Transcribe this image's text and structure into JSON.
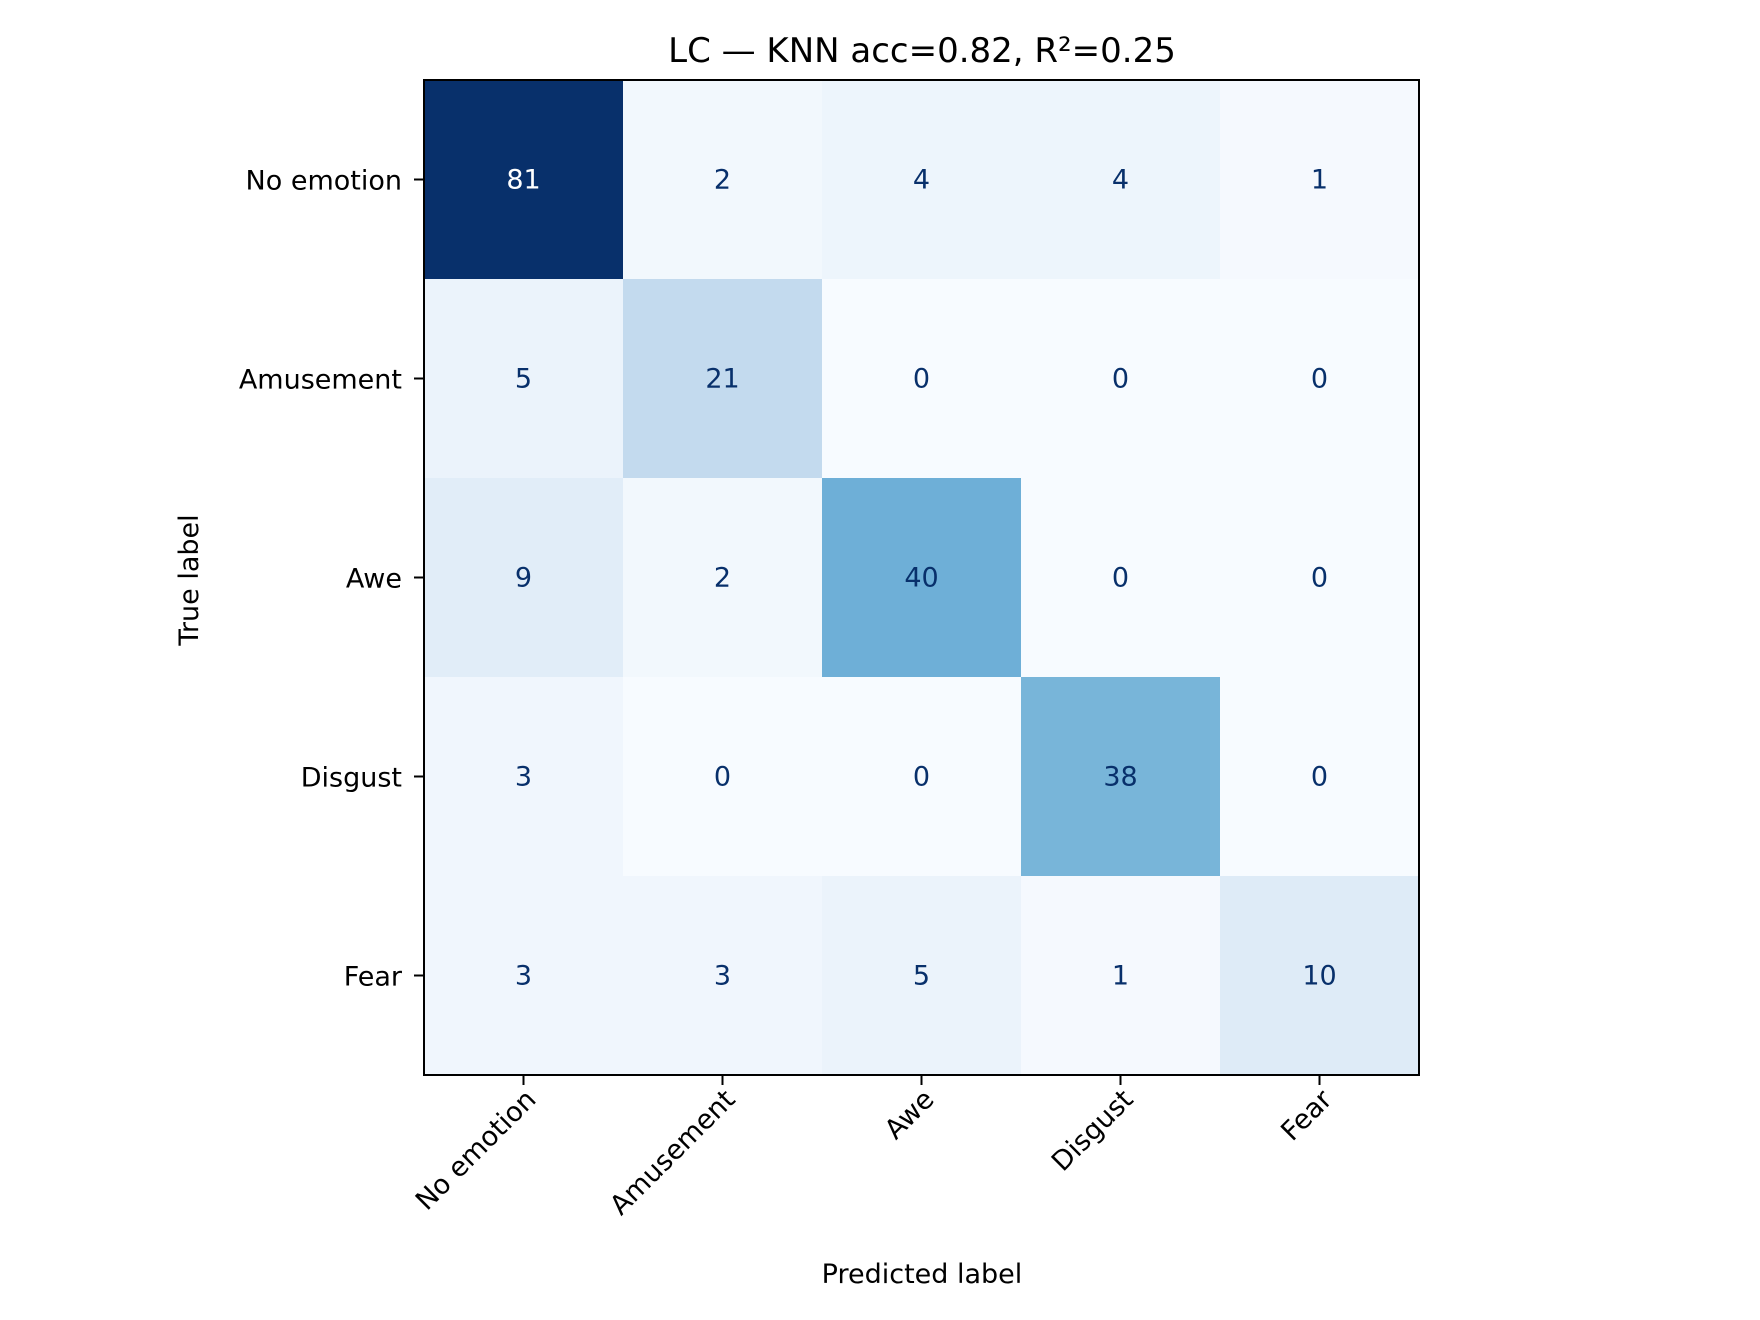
{
  "chart_data": {
    "type": "heatmap",
    "title": "LC — KNN acc=0.82, R²=0.25",
    "xlabel": "Predicted label",
    "ylabel": "True label",
    "x_categories": [
      "No emotion",
      "Amusement",
      "Awe",
      "Disgust",
      "Fear"
    ],
    "y_categories": [
      "No emotion",
      "Amusement",
      "Awe",
      "Disgust",
      "Fear"
    ],
    "values": [
      [
        81,
        2,
        4,
        4,
        1
      ],
      [
        5,
        21,
        0,
        0,
        0
      ],
      [
        9,
        2,
        40,
        0,
        0
      ],
      [
        3,
        0,
        0,
        38,
        0
      ],
      [
        3,
        3,
        5,
        1,
        10
      ]
    ],
    "colormap": "Blues",
    "colors": {
      "low": "#f7fbff",
      "high": "#08306b",
      "text_dark": "#08306b",
      "text_light": "#ffffff"
    }
  }
}
